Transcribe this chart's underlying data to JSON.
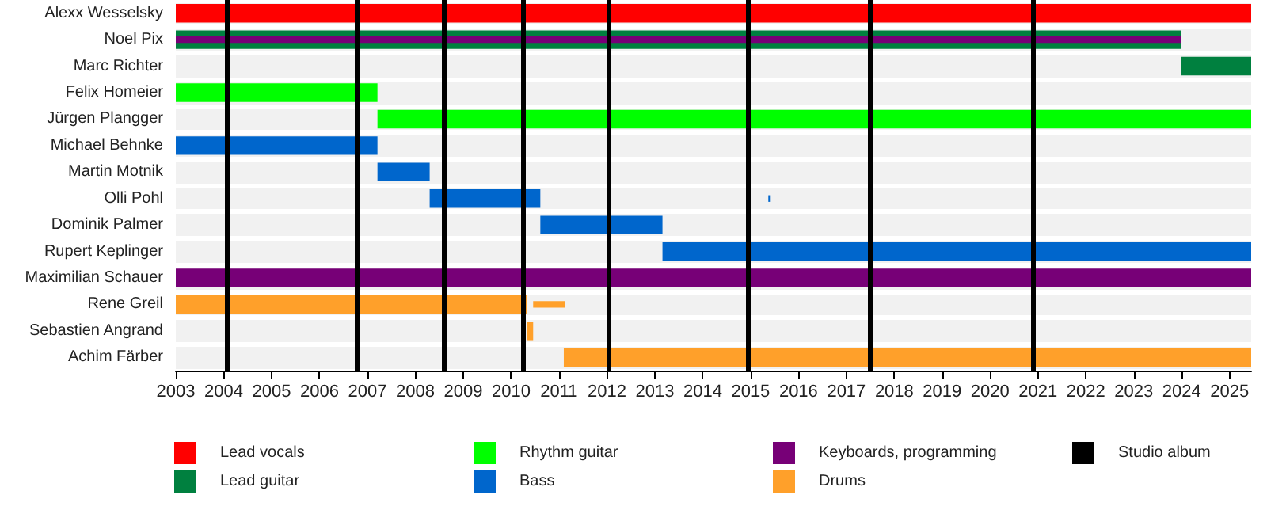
{
  "chart_data": {
    "type": "bar",
    "orientation": "horizontal",
    "categories": [
      "Alexx Wesselsky",
      "Noel Pix",
      "Marc Richter",
      "Felix Homeier",
      "Jürgen Plangger",
      "Michael Behnke",
      "Martin Motnik",
      "Olli Pohl",
      "Dominik Palmer",
      "Rupert Keplinger",
      "Maximilian Schauer",
      "Rene Greil",
      "Sebastien Angrand",
      "Achim Färber"
    ],
    "xlim": [
      2003,
      2025.45
    ],
    "xticks": [
      2003,
      2004,
      2005,
      2006,
      2007,
      2008,
      2009,
      2010,
      2011,
      2012,
      2013,
      2014,
      2015,
      2016,
      2017,
      2018,
      2019,
      2020,
      2021,
      2022,
      2023,
      2024,
      2025
    ],
    "legend": "bottom",
    "grid": false,
    "series": [
      {
        "name": "Lead vocals",
        "color": "#ff0000",
        "base": [
          2003,
          null,
          null,
          null,
          null,
          null,
          null,
          null,
          null,
          null,
          null,
          null,
          null,
          null
        ],
        "values": [
          22.45,
          null,
          null,
          null,
          null,
          null,
          null,
          null,
          null,
          null,
          null,
          null,
          null,
          null
        ]
      },
      {
        "name": "Lead guitar",
        "color": "#00803f",
        "base": [
          null,
          2003,
          2023.98,
          null,
          null,
          null,
          null,
          null,
          null,
          null,
          null,
          null,
          null,
          null
        ],
        "values": [
          null,
          20.98,
          1.47,
          null,
          null,
          null,
          null,
          null,
          null,
          null,
          null,
          null,
          null,
          null
        ]
      },
      {
        "name": "Rhythm guitar",
        "color": "#00ff00",
        "base": [
          null,
          null,
          null,
          2003,
          2007.21,
          null,
          null,
          null,
          null,
          null,
          null,
          null,
          null,
          null
        ],
        "values": [
          null,
          null,
          null,
          4.21,
          18.24,
          null,
          null,
          null,
          null,
          null,
          null,
          null,
          null,
          null
        ]
      },
      {
        "name": "Bass",
        "color": "#0066cc",
        "base": [
          null,
          null,
          null,
          null,
          null,
          2003,
          2007.21,
          2008.3,
          2010.61,
          2013.16,
          null,
          null,
          null,
          null
        ],
        "values": [
          null,
          null,
          null,
          null,
          null,
          4.21,
          1.09,
          2.31,
          2.55,
          12.29,
          null,
          null,
          null,
          null
        ]
      },
      {
        "color": "#0066cc",
        "base": [
          null,
          null,
          null,
          null,
          null,
          null,
          null,
          2015.37,
          null,
          null,
          null,
          null,
          null,
          null
        ],
        "values": [
          null,
          null,
          null,
          null,
          null,
          null,
          null,
          0.05,
          null,
          null,
          null,
          null,
          null,
          null
        ]
      },
      {
        "name": "Keyboards, programming",
        "color": "#770077",
        "base": [
          null,
          2003,
          null,
          null,
          null,
          null,
          null,
          null,
          null,
          null,
          2003,
          null,
          null,
          null
        ],
        "values": [
          null,
          20.98,
          null,
          null,
          null,
          null,
          null,
          null,
          null,
          null,
          22.45,
          null,
          null,
          null
        ]
      },
      {
        "name": "Drums",
        "color": "#ffa02a",
        "base": [
          null,
          null,
          null,
          null,
          null,
          null,
          null,
          null,
          null,
          null,
          null,
          2003,
          2010.33,
          2011.1
        ],
        "values": [
          null,
          null,
          null,
          null,
          null,
          null,
          null,
          null,
          null,
          null,
          null,
          7.33,
          0.13,
          14.35
        ]
      },
      {
        "color": "#ffa02a",
        "base": [
          null,
          null,
          null,
          null,
          null,
          null,
          null,
          null,
          null,
          null,
          null,
          2010.46,
          null,
          null
        ],
        "values": [
          null,
          null,
          null,
          null,
          null,
          null,
          null,
          null,
          null,
          null,
          null,
          0.66,
          null,
          null
        ]
      }
    ],
    "ref_lines": [
      {
        "axis": "x",
        "value": 2004.07,
        "label": "Studio album",
        "color": "#000000"
      },
      {
        "axis": "x",
        "value": 2006.77,
        "color": "#000000"
      },
      {
        "axis": "x",
        "value": 2008.58,
        "color": "#000000"
      },
      {
        "axis": "x",
        "value": 2010.24,
        "color": "#000000"
      },
      {
        "axis": "x",
        "value": 2012.02,
        "color": "#000000"
      },
      {
        "axis": "x",
        "value": 2014.94,
        "color": "#000000"
      },
      {
        "axis": "x",
        "value": 2017.49,
        "color": "#000000"
      },
      {
        "axis": "x",
        "value": 2020.9,
        "color": "#000000"
      }
    ]
  }
}
